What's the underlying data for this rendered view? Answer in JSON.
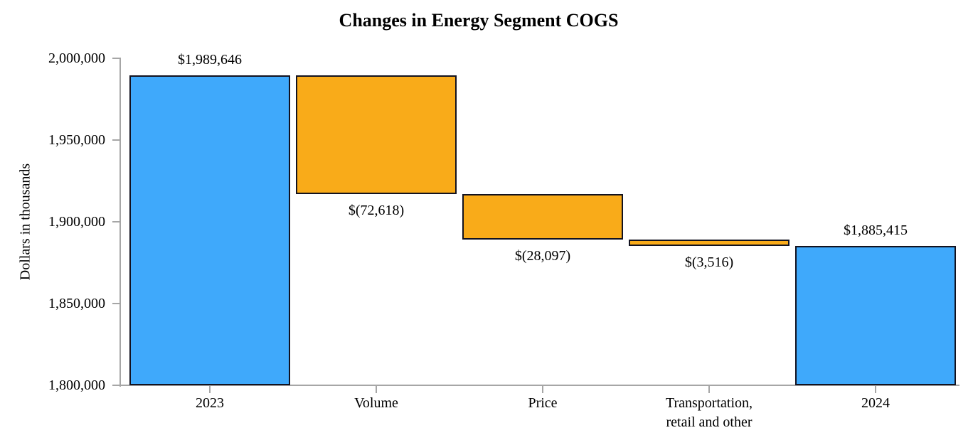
{
  "chart_data": {
    "type": "waterfall",
    "title": "Changes in Energy Segment COGS",
    "ylabel": "Dollars in thousands",
    "xlabel": "",
    "grid": "off",
    "legend": "none",
    "y_axis": {
      "min": 1800000,
      "max": 2000000,
      "step": 50000,
      "tick_labels": [
        "2,000,000",
        "1,950,000",
        "1,900,000",
        "1,850,000",
        "1,800,000"
      ]
    },
    "colors": {
      "total_bar": "#3fa9fb",
      "change_bar": "#f9ab19",
      "bar_border": "#12121f",
      "axis_line": "#a6a6a6",
      "text": "#000000"
    },
    "bars": [
      {
        "category": "2023",
        "role": "total",
        "value": 1989646,
        "label": "$1,989,646",
        "label_position": "above"
      },
      {
        "category": "Volume",
        "role": "decrease",
        "value": -72618,
        "label": "$(72,618)",
        "label_position": "below"
      },
      {
        "category": "Price",
        "role": "decrease",
        "value": -28097,
        "label": "$(28,097)",
        "label_position": "below"
      },
      {
        "category": "Transportation,\nretail and other",
        "role": "decrease",
        "value": -3516,
        "label": "$(3,516)",
        "label_position": "below"
      },
      {
        "category": "2024",
        "role": "total",
        "value": 1885415,
        "label": "$1,885,415",
        "label_position": "above"
      }
    ]
  }
}
